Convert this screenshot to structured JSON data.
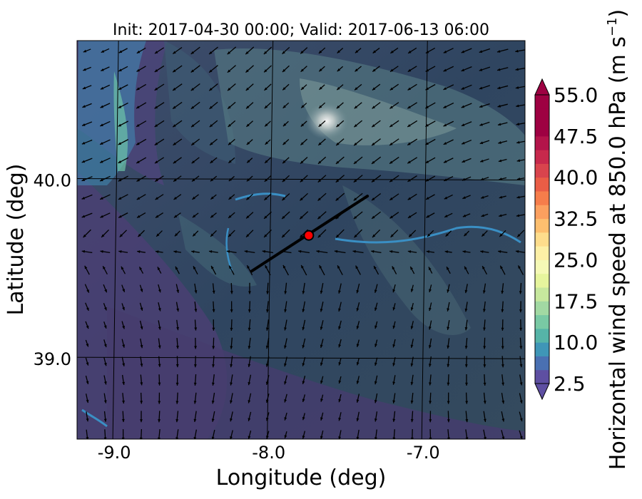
{
  "chart_data": {
    "type": "heatmap",
    "title": "Init: 2017-04-30 00:00; Valid: 2017-06-13 06:00",
    "xlabel": "Longitude (deg)",
    "ylabel": "Latitude (deg)",
    "xlim": [
      -9.25,
      -6.35
    ],
    "ylim": [
      38.55,
      40.78
    ],
    "xticks": [
      {
        "value": -9.0,
        "label": "-9.0"
      },
      {
        "value": -8.0,
        "label": "-8.0"
      },
      {
        "value": -7.0,
        "label": "-7.0"
      }
    ],
    "yticks": [
      {
        "value": 39.0,
        "label": "39.0"
      },
      {
        "value": 40.0,
        "label": "40.0"
      }
    ],
    "grid": true,
    "colorbar": {
      "label": "Horizontal wind speed at 850.0 hPa (m s",
      "label_superscript": "−1",
      "label_close": ")",
      "min": 2.5,
      "max": 55.0,
      "step": 2.5,
      "extend": "both",
      "tick_values": [
        2.5,
        10.0,
        17.5,
        25.0,
        32.5,
        40.0,
        47.5,
        55.0
      ],
      "tick_labels": [
        "2.5",
        "10.0",
        "17.5",
        "25.0",
        "32.5",
        "40.0",
        "47.5",
        "55.0"
      ],
      "colormap": "Spectral_r"
    },
    "cross_section_line": {
      "start": {
        "lon": -8.12,
        "lat": 39.49
      },
      "end": {
        "lon": -7.37,
        "lat": 39.91
      },
      "color": "#000000"
    },
    "marker": {
      "lon": -7.75,
      "lat": 39.69,
      "color": "#ff0000"
    },
    "colors": {
      "background_dark": "#2b3d55",
      "purple_low": "#4a3f73",
      "teal_mid": "#3f6a7a",
      "light_high": "#b9c4c4",
      "coast_blue": "#3a8fc4"
    }
  }
}
